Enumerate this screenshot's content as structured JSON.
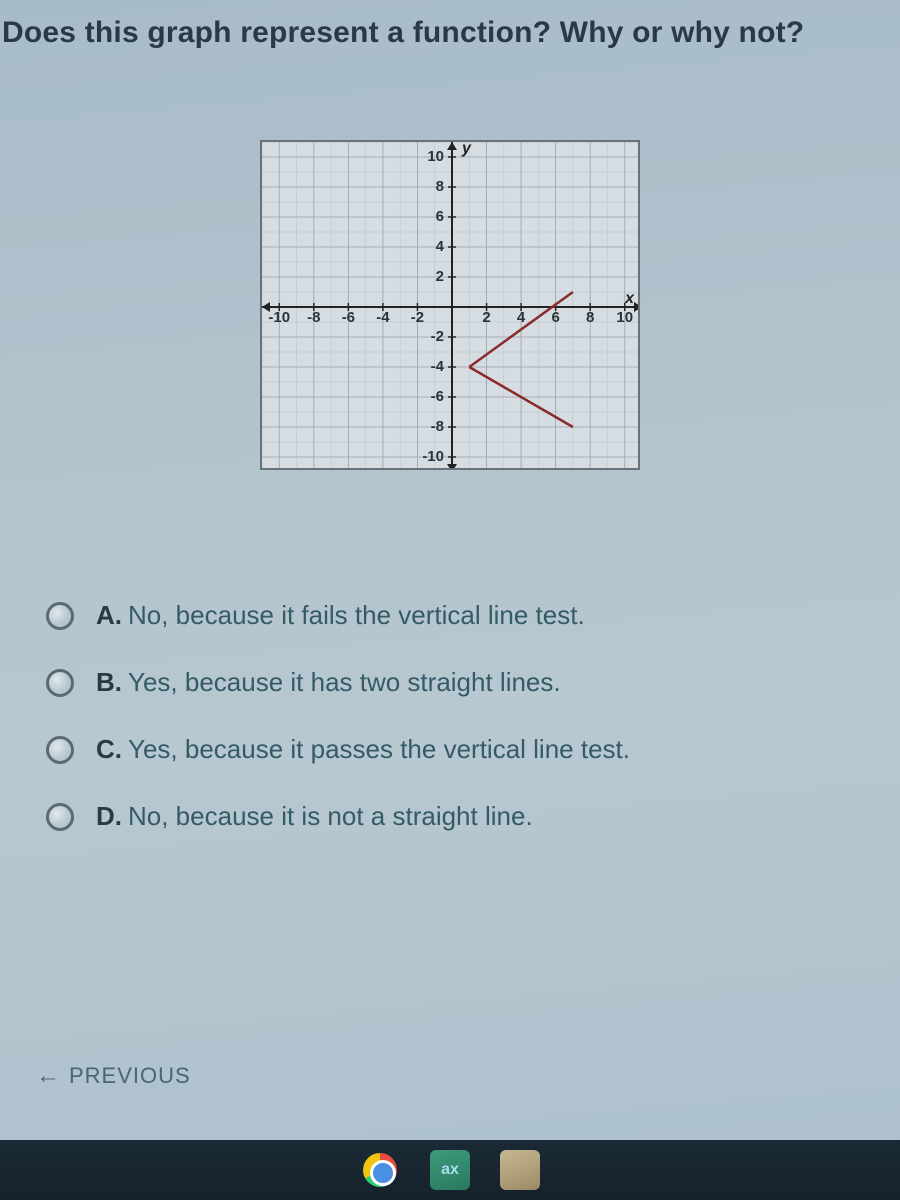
{
  "question": "Does this graph represent a function? Why or why not?",
  "graph": {
    "type": "line",
    "xlim": [
      -11,
      11
    ],
    "ylim": [
      -11,
      11
    ],
    "tick_step": 2,
    "x_ticks": [
      -10,
      -8,
      -6,
      -4,
      -2,
      2,
      4,
      6,
      8,
      10
    ],
    "y_ticks": [
      10,
      8,
      6,
      4,
      2,
      -2,
      -4,
      -6,
      -8,
      -10
    ],
    "x_axis_label": "x",
    "y_axis_label": "y",
    "label_fontsize": 15,
    "background_color": "#d6dde2",
    "fine_grid_color": "#b8c2c8",
    "major_grid_color": "#9aa4aa",
    "axis_color": "#222222",
    "line_color": "#8a2a2a",
    "line_width": 2.5,
    "segments": [
      {
        "from": [
          7,
          1
        ],
        "to": [
          1,
          -4
        ]
      },
      {
        "from": [
          1,
          -4
        ],
        "to": [
          7,
          -8
        ]
      }
    ]
  },
  "options": [
    {
      "letter": "A.",
      "text": "No, because it fails the vertical line test."
    },
    {
      "letter": "B.",
      "text": "Yes, because it has two straight lines."
    },
    {
      "letter": "C.",
      "text": "Yes, because it passes the vertical line test."
    },
    {
      "letter": "D.",
      "text": "No, because it is not a straight line."
    }
  ],
  "nav": {
    "previous": "PREVIOUS"
  },
  "taskbar": {
    "app2_label": "ax"
  }
}
